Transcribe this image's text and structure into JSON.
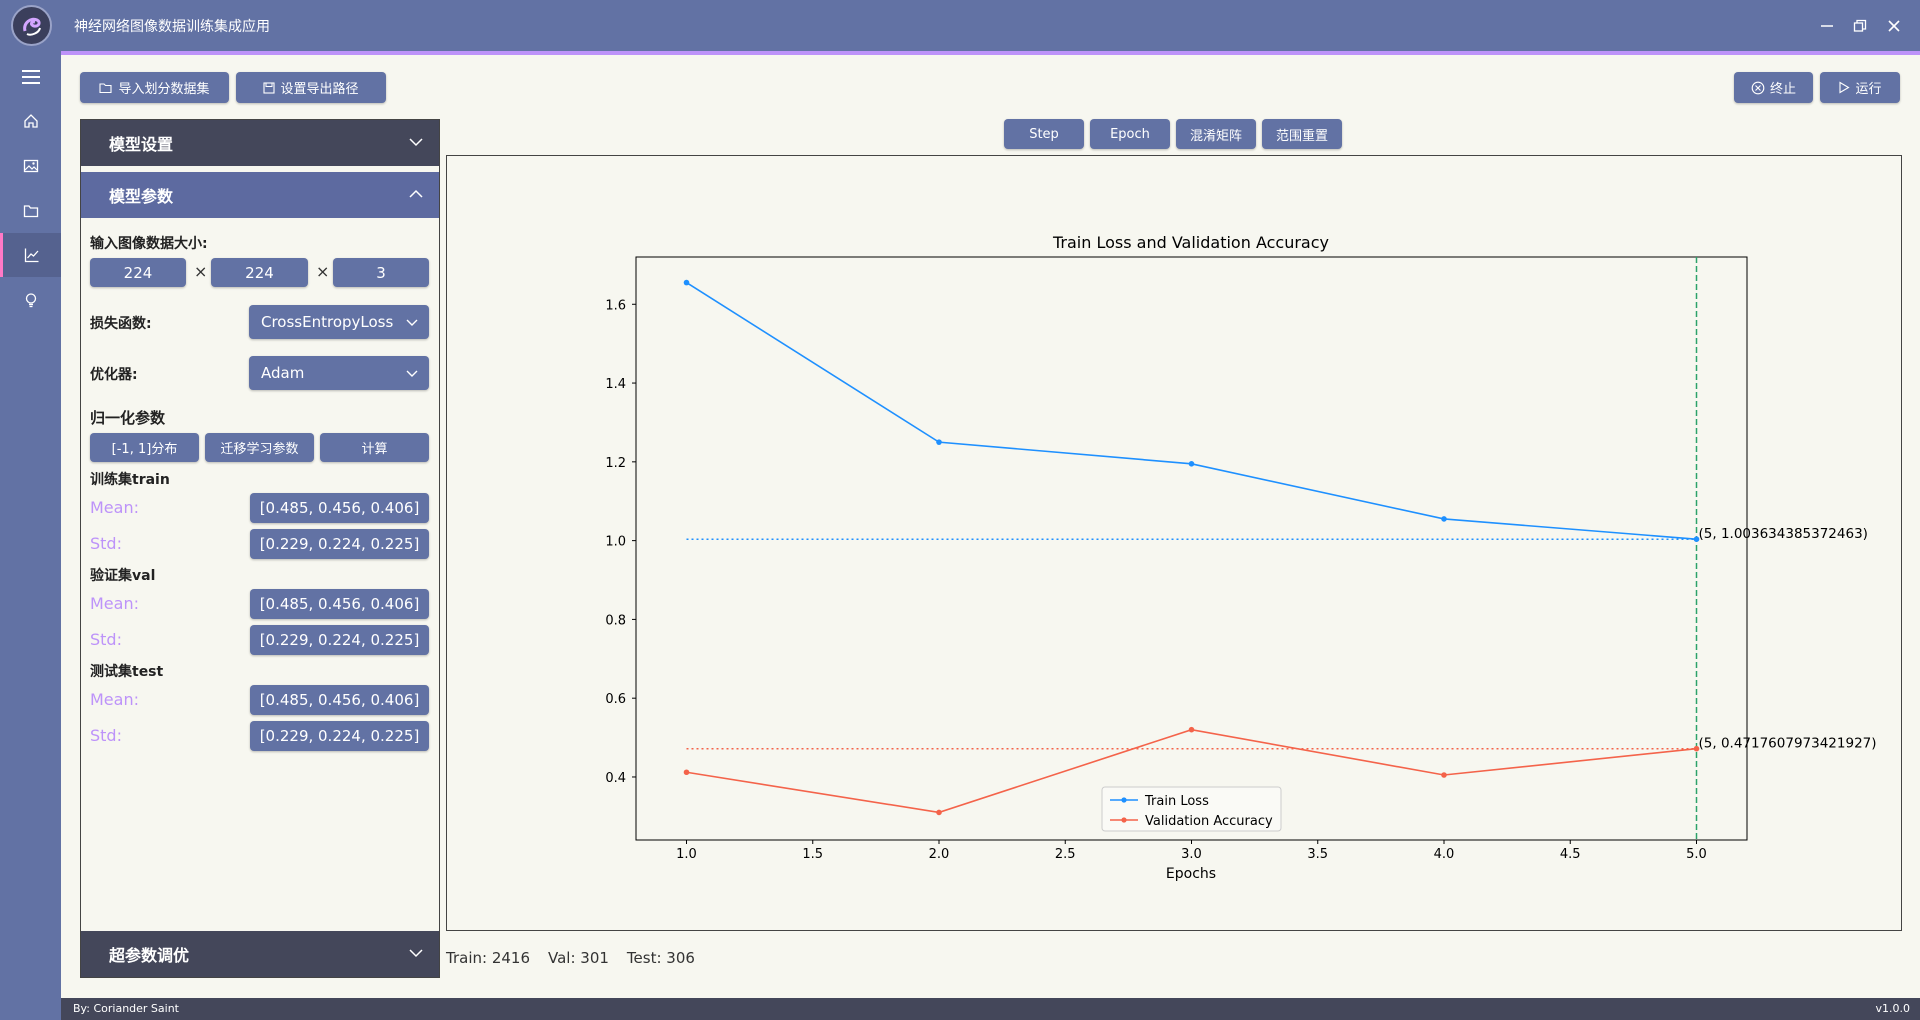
{
  "app": {
    "title": "神经网络图像数据训练集成应用"
  },
  "toolbar": {
    "import_label": "导入划分数据集",
    "export_label": "设置导出路径",
    "stop_label": "终止",
    "run_label": "运行"
  },
  "chart_tabs": [
    "Step",
    "Epoch",
    "混淆矩阵",
    "范围重置"
  ],
  "panel": {
    "model_settings": "模型设置",
    "model_params": "模型参数",
    "hyperparams": "超参数调优",
    "input_size_label": "输入图像数据大小:",
    "input_size": [
      "224",
      "224",
      "3"
    ],
    "times": "×",
    "loss_label": "损失函数:",
    "loss_value": "CrossEntropyLoss",
    "optimizer_label": "优化器:",
    "optimizer_value": "Adam",
    "norm_label": "归一化参数",
    "norm_buttons": [
      "[-1, 1]分布",
      "迁移学习参数",
      "计算"
    ],
    "sets": [
      {
        "title": "训练集train",
        "mean": "[0.485, 0.456, 0.406]",
        "std": "[0.229, 0.224, 0.225]"
      },
      {
        "title": "验证集val",
        "mean": "[0.485, 0.456, 0.406]",
        "std": "[0.229, 0.224, 0.225]"
      },
      {
        "title": "测试集test",
        "mean": "[0.485, 0.456, 0.406]",
        "std": "[0.229, 0.224, 0.225]"
      }
    ],
    "mean_label": "Mean:",
    "std_label": "Std:"
  },
  "stats": {
    "train": "Train: 2416",
    "val": "Val: 301",
    "test": "Test: 306"
  },
  "footer": {
    "author": "By: Coriander Saint",
    "version": "v1.0.0"
  },
  "colors": {
    "primary": "#6272a4",
    "dark": "#44475a",
    "accent": "#bd93f9",
    "train": "#1e90ff",
    "val": "#f4634a",
    "marker_line": "#2ca26a"
  },
  "chart_data": {
    "type": "line",
    "title": "Train Loss and Validation Accuracy",
    "xlabel": "Epochs",
    "ylabel": "",
    "x": [
      1,
      2,
      3,
      4,
      5
    ],
    "series": [
      {
        "name": "Train Loss",
        "values": [
          1.655,
          1.25,
          1.195,
          1.055,
          1.003634385372463
        ]
      },
      {
        "name": "Validation Accuracy",
        "values": [
          0.412,
          0.31,
          0.52,
          0.405,
          0.4717607973421927
        ]
      }
    ],
    "xlim": [
      0.8,
      5.2
    ],
    "ylim": [
      0.24,
      1.72
    ],
    "xticks": [
      "1.0",
      "1.5",
      "2.0",
      "2.5",
      "3.0",
      "3.5",
      "4.0",
      "4.5",
      "5.0"
    ],
    "yticks": [
      "0.4",
      "0.6",
      "0.8",
      "1.0",
      "1.2",
      "1.4",
      "1.6"
    ],
    "annotations": [
      "(5, 1.003634385372463)",
      "(5, 0.4717607973421927)"
    ],
    "vline_x": 5,
    "legend": "bottom-center"
  }
}
